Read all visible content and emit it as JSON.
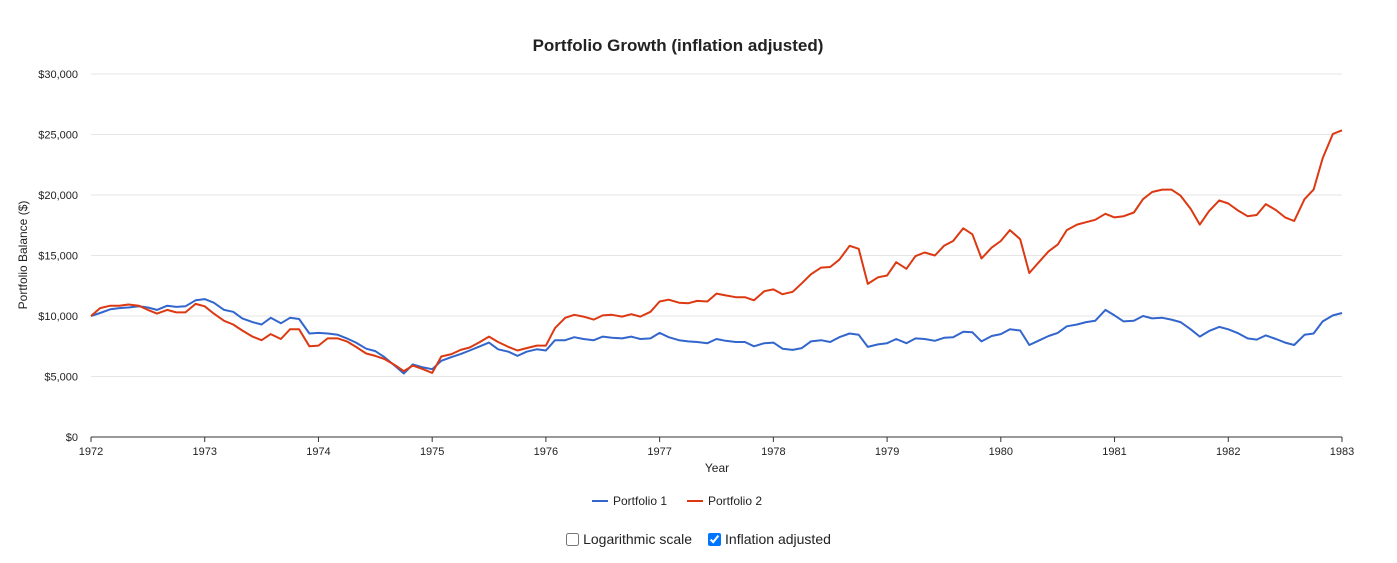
{
  "chart_data": {
    "type": "line",
    "title": "Portfolio Growth (inflation adjusted)",
    "xlabel": "Year",
    "ylabel": "Portfolio Balance ($)",
    "xlim": [
      1972,
      1983
    ],
    "ylim": [
      0,
      30000
    ],
    "x_ticks": [
      1972,
      1973,
      1974,
      1975,
      1976,
      1977,
      1978,
      1979,
      1980,
      1981,
      1982,
      1983
    ],
    "x_tick_labels": [
      "1972",
      "1973",
      "1974",
      "1975",
      "1976",
      "1977",
      "1978",
      "1979",
      "1980",
      "1981",
      "1982",
      "1983"
    ],
    "y_ticks": [
      0,
      5000,
      10000,
      15000,
      20000,
      25000,
      30000
    ],
    "y_tick_labels": [
      "$0",
      "$5,000",
      "$10,000",
      "$15,000",
      "$20,000",
      "$25,000",
      "$30,000"
    ],
    "grid": true,
    "legend_position": "bottom-center",
    "series": [
      {
        "name": "Portfolio 1",
        "color": "#3366cc",
        "points": [
          [
            1972.0,
            10000
          ],
          [
            1972.08,
            10250
          ],
          [
            1972.17,
            10550
          ],
          [
            1972.25,
            10650
          ],
          [
            1972.33,
            10700
          ],
          [
            1972.42,
            10800
          ],
          [
            1972.5,
            10700
          ],
          [
            1972.58,
            10500
          ],
          [
            1972.67,
            10850
          ],
          [
            1972.75,
            10750
          ],
          [
            1972.83,
            10800
          ],
          [
            1972.92,
            11300
          ],
          [
            1973.0,
            11400
          ],
          [
            1973.08,
            11100
          ],
          [
            1973.17,
            10500
          ],
          [
            1973.25,
            10350
          ],
          [
            1973.33,
            9800
          ],
          [
            1973.42,
            9500
          ],
          [
            1973.5,
            9300
          ],
          [
            1973.58,
            9850
          ],
          [
            1973.67,
            9400
          ],
          [
            1973.75,
            9850
          ],
          [
            1973.83,
            9750
          ],
          [
            1973.92,
            8550
          ],
          [
            1974.0,
            8600
          ],
          [
            1974.08,
            8550
          ],
          [
            1974.17,
            8450
          ],
          [
            1974.25,
            8150
          ],
          [
            1974.33,
            7800
          ],
          [
            1974.42,
            7300
          ],
          [
            1974.5,
            7100
          ],
          [
            1974.58,
            6600
          ],
          [
            1974.67,
            5900
          ],
          [
            1974.75,
            5250
          ],
          [
            1974.83,
            6000
          ],
          [
            1974.92,
            5750
          ],
          [
            1975.0,
            5600
          ],
          [
            1975.08,
            6300
          ],
          [
            1975.17,
            6600
          ],
          [
            1975.25,
            6850
          ],
          [
            1975.33,
            7150
          ],
          [
            1975.42,
            7500
          ],
          [
            1975.5,
            7800
          ],
          [
            1975.58,
            7250
          ],
          [
            1975.67,
            7050
          ],
          [
            1975.75,
            6700
          ],
          [
            1975.83,
            7050
          ],
          [
            1975.92,
            7250
          ],
          [
            1976.0,
            7150
          ],
          [
            1976.08,
            8000
          ],
          [
            1976.17,
            8000
          ],
          [
            1976.25,
            8250
          ],
          [
            1976.33,
            8100
          ],
          [
            1976.42,
            8000
          ],
          [
            1976.5,
            8300
          ],
          [
            1976.58,
            8200
          ],
          [
            1976.67,
            8150
          ],
          [
            1976.75,
            8300
          ],
          [
            1976.83,
            8100
          ],
          [
            1976.92,
            8150
          ],
          [
            1977.0,
            8600
          ],
          [
            1977.08,
            8250
          ],
          [
            1977.17,
            8000
          ],
          [
            1977.25,
            7900
          ],
          [
            1977.33,
            7850
          ],
          [
            1977.42,
            7750
          ],
          [
            1977.5,
            8100
          ],
          [
            1977.58,
            7950
          ],
          [
            1977.67,
            7850
          ],
          [
            1977.75,
            7850
          ],
          [
            1977.83,
            7500
          ],
          [
            1977.92,
            7750
          ],
          [
            1978.0,
            7800
          ],
          [
            1978.08,
            7300
          ],
          [
            1978.17,
            7200
          ],
          [
            1978.25,
            7350
          ],
          [
            1978.33,
            7900
          ],
          [
            1978.42,
            8000
          ],
          [
            1978.5,
            7850
          ],
          [
            1978.58,
            8250
          ],
          [
            1978.67,
            8550
          ],
          [
            1978.75,
            8450
          ],
          [
            1978.83,
            7450
          ],
          [
            1978.92,
            7650
          ],
          [
            1979.0,
            7750
          ],
          [
            1979.08,
            8100
          ],
          [
            1979.17,
            7750
          ],
          [
            1979.25,
            8150
          ],
          [
            1979.33,
            8100
          ],
          [
            1979.42,
            7950
          ],
          [
            1979.5,
            8200
          ],
          [
            1979.58,
            8250
          ],
          [
            1979.67,
            8700
          ],
          [
            1979.75,
            8650
          ],
          [
            1979.83,
            7900
          ],
          [
            1979.92,
            8350
          ],
          [
            1980.0,
            8500
          ],
          [
            1980.08,
            8900
          ],
          [
            1980.17,
            8800
          ],
          [
            1980.25,
            7600
          ],
          [
            1980.33,
            7950
          ],
          [
            1980.42,
            8350
          ],
          [
            1980.5,
            8600
          ],
          [
            1980.58,
            9150
          ],
          [
            1980.67,
            9300
          ],
          [
            1980.75,
            9500
          ],
          [
            1980.83,
            9600
          ],
          [
            1980.92,
            10500
          ],
          [
            1981.0,
            10050
          ],
          [
            1981.08,
            9550
          ],
          [
            1981.17,
            9600
          ],
          [
            1981.25,
            10000
          ],
          [
            1981.33,
            9800
          ],
          [
            1981.42,
            9850
          ],
          [
            1981.5,
            9700
          ],
          [
            1981.58,
            9500
          ],
          [
            1981.67,
            8900
          ],
          [
            1981.75,
            8300
          ],
          [
            1981.83,
            8750
          ],
          [
            1981.92,
            9100
          ],
          [
            1982.0,
            8900
          ],
          [
            1982.08,
            8600
          ],
          [
            1982.17,
            8150
          ],
          [
            1982.25,
            8050
          ],
          [
            1982.33,
            8400
          ],
          [
            1982.42,
            8100
          ],
          [
            1982.5,
            7800
          ],
          [
            1982.58,
            7600
          ],
          [
            1982.67,
            8450
          ],
          [
            1982.75,
            8550
          ],
          [
            1982.83,
            9550
          ],
          [
            1982.92,
            10050
          ],
          [
            1983.0,
            10250
          ]
        ]
      },
      {
        "name": "Portfolio 2",
        "color": "#dc3912",
        "points": [
          [
            1972.0,
            10000
          ],
          [
            1972.08,
            10650
          ],
          [
            1972.17,
            10850
          ],
          [
            1972.25,
            10850
          ],
          [
            1972.33,
            10950
          ],
          [
            1972.42,
            10850
          ],
          [
            1972.5,
            10500
          ],
          [
            1972.58,
            10200
          ],
          [
            1972.67,
            10500
          ],
          [
            1972.75,
            10300
          ],
          [
            1972.83,
            10300
          ],
          [
            1972.92,
            11000
          ],
          [
            1973.0,
            10800
          ],
          [
            1973.08,
            10200
          ],
          [
            1973.17,
            9600
          ],
          [
            1973.25,
            9300
          ],
          [
            1973.33,
            8800
          ],
          [
            1973.42,
            8300
          ],
          [
            1973.5,
            8000
          ],
          [
            1973.58,
            8500
          ],
          [
            1973.67,
            8100
          ],
          [
            1973.75,
            8900
          ],
          [
            1973.83,
            8900
          ],
          [
            1973.92,
            7500
          ],
          [
            1974.0,
            7550
          ],
          [
            1974.08,
            8150
          ],
          [
            1974.17,
            8150
          ],
          [
            1974.25,
            7900
          ],
          [
            1974.33,
            7450
          ],
          [
            1974.42,
            6900
          ],
          [
            1974.5,
            6700
          ],
          [
            1974.58,
            6450
          ],
          [
            1974.67,
            5950
          ],
          [
            1974.75,
            5450
          ],
          [
            1974.83,
            5900
          ],
          [
            1974.92,
            5600
          ],
          [
            1975.0,
            5300
          ],
          [
            1975.08,
            6650
          ],
          [
            1975.17,
            6850
          ],
          [
            1975.25,
            7200
          ],
          [
            1975.33,
            7400
          ],
          [
            1975.42,
            7850
          ],
          [
            1975.5,
            8300
          ],
          [
            1975.58,
            7850
          ],
          [
            1975.67,
            7450
          ],
          [
            1975.75,
            7150
          ],
          [
            1975.83,
            7350
          ],
          [
            1975.92,
            7550
          ],
          [
            1976.0,
            7550
          ],
          [
            1976.08,
            9000
          ],
          [
            1976.17,
            9850
          ],
          [
            1976.25,
            10100
          ],
          [
            1976.33,
            9950
          ],
          [
            1976.42,
            9700
          ],
          [
            1976.5,
            10050
          ],
          [
            1976.58,
            10100
          ],
          [
            1976.67,
            9950
          ],
          [
            1976.75,
            10150
          ],
          [
            1976.83,
            9950
          ],
          [
            1976.92,
            10350
          ],
          [
            1977.0,
            11200
          ],
          [
            1977.08,
            11350
          ],
          [
            1977.17,
            11100
          ],
          [
            1977.25,
            11050
          ],
          [
            1977.33,
            11250
          ],
          [
            1977.42,
            11200
          ],
          [
            1977.5,
            11850
          ],
          [
            1977.58,
            11700
          ],
          [
            1977.67,
            11550
          ],
          [
            1977.75,
            11550
          ],
          [
            1977.83,
            11300
          ],
          [
            1977.92,
            12050
          ],
          [
            1978.0,
            12200
          ],
          [
            1978.08,
            11800
          ],
          [
            1978.17,
            12000
          ],
          [
            1978.25,
            12700
          ],
          [
            1978.33,
            13450
          ],
          [
            1978.42,
            14000
          ],
          [
            1978.5,
            14050
          ],
          [
            1978.58,
            14650
          ],
          [
            1978.67,
            15800
          ],
          [
            1978.75,
            15550
          ],
          [
            1978.83,
            12650
          ],
          [
            1978.92,
            13200
          ],
          [
            1979.0,
            13350
          ],
          [
            1979.08,
            14450
          ],
          [
            1979.17,
            13900
          ],
          [
            1979.25,
            14950
          ],
          [
            1979.33,
            15250
          ],
          [
            1979.42,
            15000
          ],
          [
            1979.5,
            15800
          ],
          [
            1979.58,
            16200
          ],
          [
            1979.67,
            17250
          ],
          [
            1979.75,
            16750
          ],
          [
            1979.83,
            14750
          ],
          [
            1979.92,
            15650
          ],
          [
            1980.0,
            16200
          ],
          [
            1980.08,
            17100
          ],
          [
            1980.17,
            16350
          ],
          [
            1980.25,
            13550
          ],
          [
            1980.33,
            14400
          ],
          [
            1980.42,
            15350
          ],
          [
            1980.5,
            15900
          ],
          [
            1980.58,
            17100
          ],
          [
            1980.67,
            17550
          ],
          [
            1980.75,
            17750
          ],
          [
            1980.83,
            17950
          ],
          [
            1980.92,
            18450
          ],
          [
            1981.0,
            18150
          ],
          [
            1981.08,
            18250
          ],
          [
            1981.17,
            18550
          ],
          [
            1981.25,
            19650
          ],
          [
            1981.33,
            20250
          ],
          [
            1981.42,
            20450
          ],
          [
            1981.5,
            20450
          ],
          [
            1981.58,
            19950
          ],
          [
            1981.67,
            18850
          ],
          [
            1981.75,
            17550
          ],
          [
            1981.83,
            18650
          ],
          [
            1981.92,
            19550
          ],
          [
            1982.0,
            19300
          ],
          [
            1982.08,
            18750
          ],
          [
            1982.17,
            18250
          ],
          [
            1982.25,
            18350
          ],
          [
            1982.33,
            19250
          ],
          [
            1982.42,
            18750
          ],
          [
            1982.5,
            18150
          ],
          [
            1982.58,
            17850
          ],
          [
            1982.67,
            19650
          ],
          [
            1982.75,
            20450
          ],
          [
            1982.83,
            23050
          ],
          [
            1982.92,
            25050
          ],
          [
            1983.0,
            25350
          ]
        ]
      }
    ]
  },
  "controls": {
    "log_scale": {
      "label": "Logarithmic scale",
      "checked": false
    },
    "inflation_adjusted": {
      "label": "Inflation adjusted",
      "checked": true
    }
  }
}
